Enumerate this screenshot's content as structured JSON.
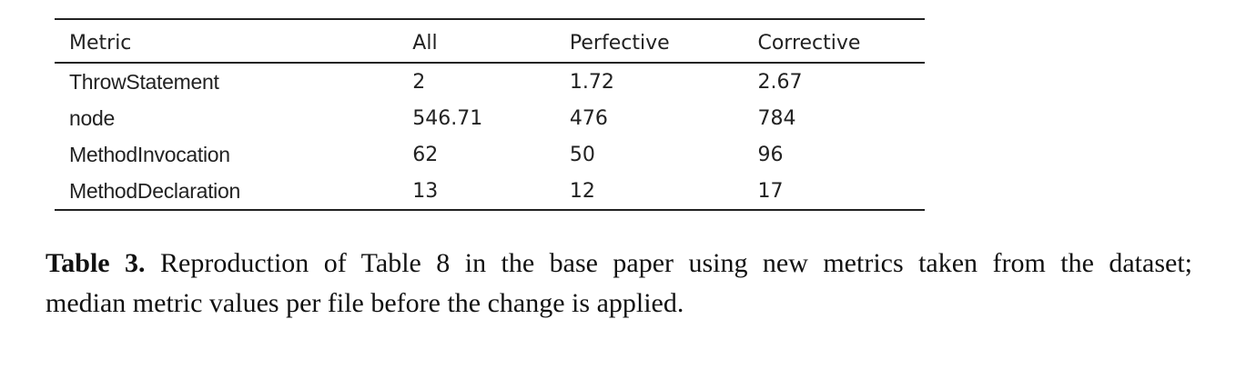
{
  "table": {
    "headers": [
      "Metric",
      "All",
      "Perfective",
      "Corrective"
    ],
    "rows": [
      [
        "ThrowStatement",
        "2",
        "1.72",
        "2.67"
      ],
      [
        "node",
        "546.71",
        "476",
        "784"
      ],
      [
        "MethodInvocation",
        "62",
        "50",
        "96"
      ],
      [
        "MethodDeclaration",
        "13",
        "12",
        "17"
      ]
    ]
  },
  "caption": {
    "label": "Table 3.",
    "line1": "Reproduction of Table 8 in the base paper using new metrics taken from the dataset;",
    "line2": "median metric values per file before the change is applied."
  }
}
